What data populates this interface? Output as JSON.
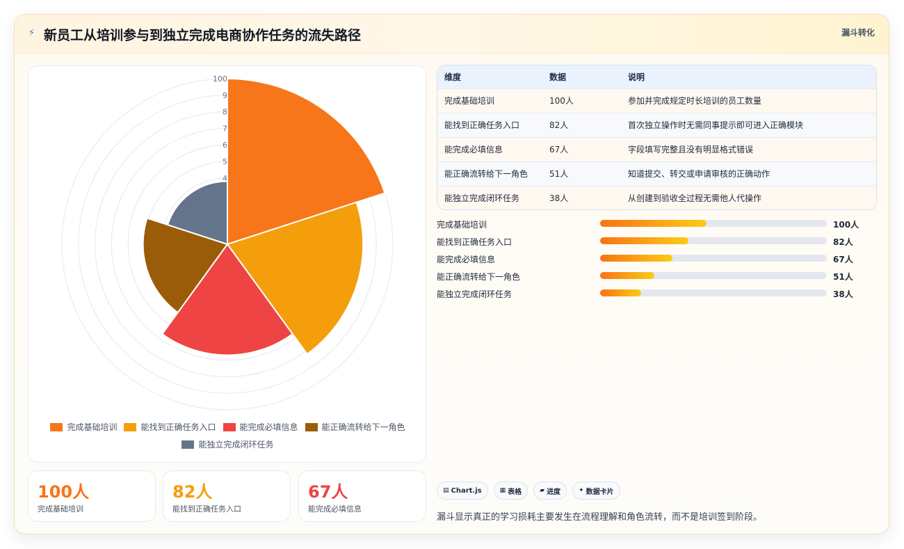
{
  "header": {
    "icon": "bolt-icon",
    "title": "新员工从培训参与到独立完成电商协作任务的流失路径",
    "tag": "漏斗转化"
  },
  "chart_data": {
    "type": "polarArea",
    "categories": [
      "完成基础培训",
      "能找到正确任务入口",
      "能完成必填信息",
      "能正确流转给下一角色",
      "能独立完成闭环任务"
    ],
    "values": [
      100,
      82,
      67,
      51,
      38
    ],
    "colors": [
      "#f7761a",
      "#f59e0b",
      "#ef4444",
      "#9a5c08",
      "#64748b"
    ],
    "rlim": [
      0,
      100
    ],
    "radial_ticks": [
      "100",
      "9",
      "8",
      "7",
      "6",
      "5",
      "4"
    ],
    "legend_position": "bottom"
  },
  "stats": [
    {
      "value": "100人",
      "label": "完成基础培训",
      "color": "#f97316"
    },
    {
      "value": "82人",
      "label": "能找到正确任务入口",
      "color": "#f59e0b"
    },
    {
      "value": "67人",
      "label": "能完成必填信息",
      "color": "#ef4444"
    }
  ],
  "table": {
    "headers": [
      "维度",
      "数据",
      "说明"
    ],
    "rows": [
      [
        "完成基础培训",
        "100人",
        "参加并完成规定时长培训的员工数量"
      ],
      [
        "能找到正确任务入口",
        "82人",
        "首次独立操作时无需同事提示即可进入正确模块"
      ],
      [
        "能完成必填信息",
        "67人",
        "字段填写完整且没有明显格式错误"
      ],
      [
        "能正确流转给下一角色",
        "51人",
        "知道提交、转交或申请审核的正确动作"
      ],
      [
        "能独立完成闭环任务",
        "38人",
        "从创建到验收全过程无需他人代操作"
      ]
    ]
  },
  "progress": [
    {
      "label": "完成基础培训",
      "value": "100人",
      "fill": 0.47
    },
    {
      "label": "能找到正确任务入口",
      "value": "82人",
      "fill": 0.39
    },
    {
      "label": "能完成必填信息",
      "value": "67人",
      "fill": 0.32
    },
    {
      "label": "能正确流转给下一角色",
      "value": "51人",
      "fill": 0.24
    },
    {
      "label": "能独立完成闭环任务",
      "value": "38人",
      "fill": 0.18
    }
  ],
  "chips": [
    {
      "icon": "▤",
      "label": "Chart.js"
    },
    {
      "icon": "▦",
      "label": "表格"
    },
    {
      "icon": "▰",
      "label": "进度"
    },
    {
      "icon": "✦",
      "label": "数据卡片"
    }
  ],
  "note": "漏斗显示真正的学习损耗主要发生在流程理解和角色流转，而不是培训签到阶段。"
}
